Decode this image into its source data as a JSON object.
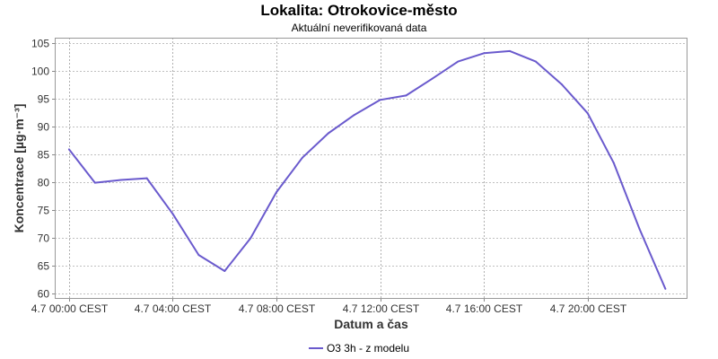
{
  "chart_data": {
    "type": "line",
    "title": "Lokalita: Otrokovice-město",
    "subtitle": "Aktuální neverifikovaná data",
    "xlabel": "Datum a čas",
    "ylabel": "Koncentrace [µg·m⁻³]",
    "ylim": [
      59,
      106
    ],
    "yticks": [
      60,
      65,
      70,
      75,
      80,
      85,
      90,
      95,
      100,
      105
    ],
    "xlim": [
      -0.55,
      23.85
    ],
    "xticks": [
      {
        "x": 0,
        "label": "4.7 00:00 CEST"
      },
      {
        "x": 4,
        "label": "4.7 04:00 CEST"
      },
      {
        "x": 8,
        "label": "4.7 08:00 CEST"
      },
      {
        "x": 12,
        "label": "4.7 12:00 CEST"
      },
      {
        "x": 16,
        "label": "4.7 16:00 CEST"
      },
      {
        "x": 20,
        "label": "4.7 20:00 CEST"
      }
    ],
    "grid": true,
    "legend_position": "bottom",
    "series": [
      {
        "name": "O3 3h - z modelu",
        "color": "#6a5acd",
        "x": [
          0,
          1,
          2,
          3,
          4,
          5,
          6,
          7,
          8,
          9,
          10,
          11,
          12,
          13,
          14,
          15,
          16,
          17,
          18,
          19,
          20,
          21,
          22,
          23
        ],
        "y": [
          85.9,
          79.9,
          80.4,
          80.7,
          74.3,
          66.9,
          64.0,
          69.9,
          78.2,
          84.4,
          88.8,
          92.1,
          94.8,
          95.6,
          98.6,
          101.7,
          103.2,
          103.6,
          101.7,
          97.6,
          92.4,
          83.5,
          71.6,
          60.8
        ]
      }
    ]
  }
}
